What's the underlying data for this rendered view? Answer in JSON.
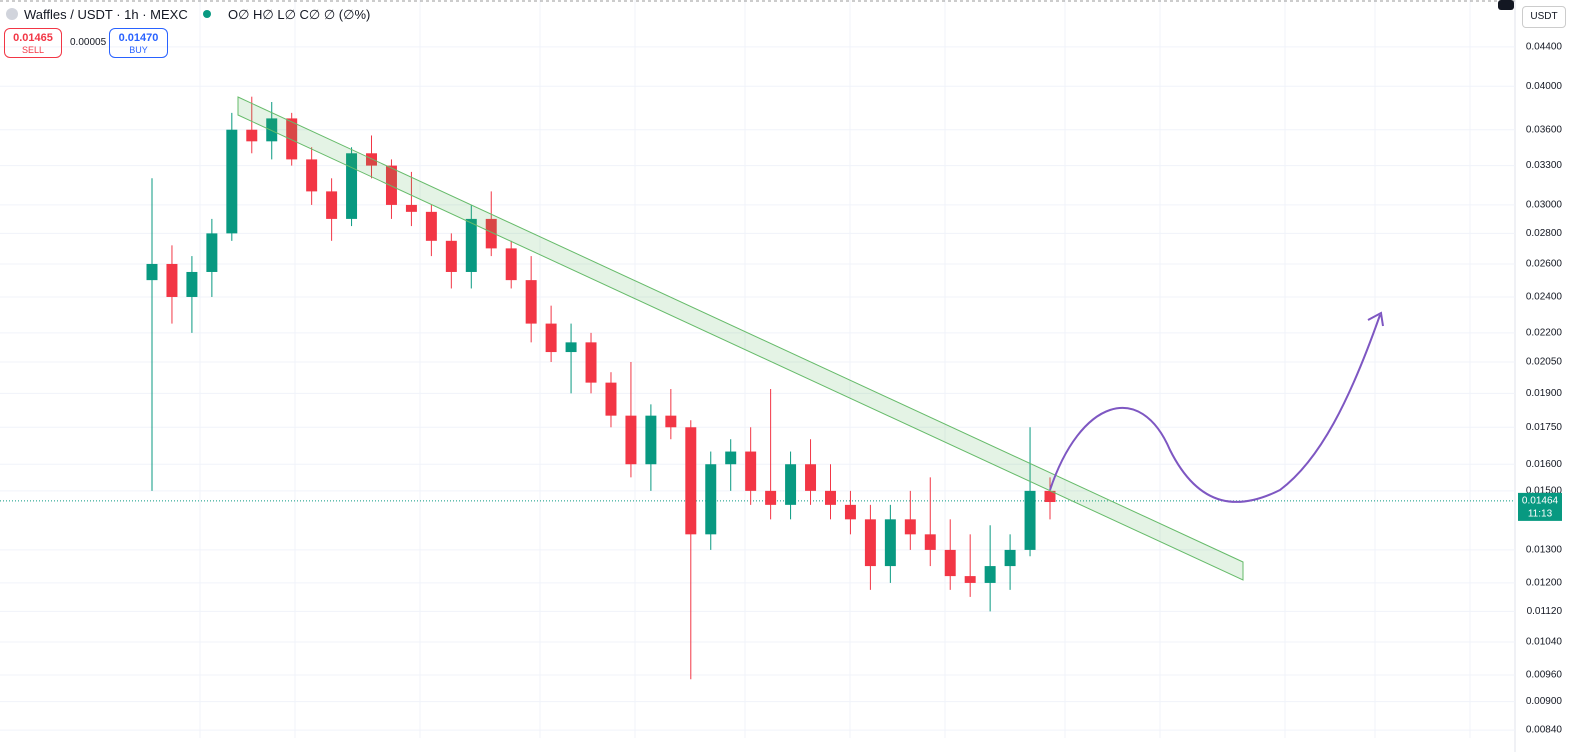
{
  "header": {
    "symbol": "Waffles / USDT · 1h · MEXC",
    "ohlc": "O∅ H∅ L∅ C∅ ∅ (∅%)",
    "sell_price": "0.01465",
    "sell_label": "SELL",
    "spread": "0.00005",
    "buy_price": "0.01470",
    "buy_label": "BUY",
    "currency": "USDT"
  },
  "chart_data": {
    "type": "candlestick",
    "log_scale": true,
    "up_color": "#089981",
    "down_color": "#f23645",
    "open": [
      0.025,
      0.026,
      0.024,
      0.0255,
      0.028,
      0.036,
      0.035,
      0.037,
      0.0335,
      0.031,
      0.029,
      0.034,
      0.033,
      0.03,
      0.0295,
      0.0275,
      0.0255,
      0.029,
      0.027,
      0.025,
      0.0225,
      0.021,
      0.0215,
      0.0195,
      0.018,
      0.016,
      0.018,
      0.0175,
      0.0135,
      0.016,
      0.0165,
      0.015,
      0.0145,
      0.016,
      0.015,
      0.0145,
      0.014,
      0.0125,
      0.014,
      0.0135,
      0.013,
      0.0122,
      0.012,
      0.0125,
      0.013,
      0.015
    ],
    "high": [
      0.032,
      0.0272,
      0.0265,
      0.029,
      0.0375,
      0.039,
      0.0385,
      0.0375,
      0.0345,
      0.032,
      0.0345,
      0.0355,
      0.0335,
      0.0325,
      0.03,
      0.028,
      0.03,
      0.031,
      0.0275,
      0.0265,
      0.0235,
      0.0225,
      0.022,
      0.02,
      0.0205,
      0.0185,
      0.0192,
      0.0178,
      0.0165,
      0.017,
      0.0175,
      0.0192,
      0.0165,
      0.017,
      0.016,
      0.015,
      0.0145,
      0.0145,
      0.015,
      0.0155,
      0.014,
      0.0135,
      0.0138,
      0.0135,
      0.0175,
      0.0155
    ],
    "low": [
      0.015,
      0.0225,
      0.022,
      0.024,
      0.0275,
      0.034,
      0.0335,
      0.033,
      0.03,
      0.0275,
      0.0285,
      0.032,
      0.029,
      0.0285,
      0.0265,
      0.0245,
      0.0245,
      0.0265,
      0.0245,
      0.0215,
      0.0205,
      0.019,
      0.019,
      0.0175,
      0.0155,
      0.015,
      0.017,
      0.0095,
      0.013,
      0.015,
      0.0145,
      0.014,
      0.014,
      0.0145,
      0.014,
      0.0135,
      0.0118,
      0.012,
      0.013,
      0.0125,
      0.0118,
      0.0116,
      0.0112,
      0.0118,
      0.0128,
      0.014
    ],
    "close": [
      0.026,
      0.024,
      0.0255,
      0.028,
      0.036,
      0.035,
      0.037,
      0.0335,
      0.031,
      0.029,
      0.034,
      0.033,
      0.03,
      0.0295,
      0.0275,
      0.0255,
      0.029,
      0.027,
      0.025,
      0.0225,
      0.021,
      0.0215,
      0.0195,
      0.018,
      0.016,
      0.018,
      0.0175,
      0.0135,
      0.016,
      0.0165,
      0.015,
      0.0145,
      0.016,
      0.015,
      0.0145,
      0.014,
      0.0125,
      0.014,
      0.0135,
      0.013,
      0.0122,
      0.012,
      0.0125,
      0.013,
      0.015,
      0.0146
    ],
    "ylim": [
      0.00824,
      0.0493
    ],
    "yticks": [
      {
        "value": 0.044,
        "label": "0.04400"
      },
      {
        "value": 0.04,
        "label": "0.04000"
      },
      {
        "value": 0.036,
        "label": "0.03600"
      },
      {
        "value": 0.033,
        "label": "0.03300"
      },
      {
        "value": 0.03,
        "label": "0.03000"
      },
      {
        "value": 0.028,
        "label": "0.02800"
      },
      {
        "value": 0.026,
        "label": "0.02600"
      },
      {
        "value": 0.024,
        "label": "0.02400"
      },
      {
        "value": 0.022,
        "label": "0.02200"
      },
      {
        "value": 0.0205,
        "label": "0.02050"
      },
      {
        "value": 0.019,
        "label": "0.01900"
      },
      {
        "value": 0.0175,
        "label": "0.01750"
      },
      {
        "value": 0.016,
        "label": "0.01600"
      },
      {
        "value": 0.015,
        "label": "0.01500"
      },
      {
        "value": 0.013,
        "label": "0.01300"
      },
      {
        "value": 0.012,
        "label": "0.01200"
      },
      {
        "value": 0.0112,
        "label": "0.01120"
      },
      {
        "value": 0.0104,
        "label": "0.01040"
      },
      {
        "value": 0.0096,
        "label": "0.00960"
      },
      {
        "value": 0.009,
        "label": "0.00900"
      },
      {
        "value": 0.0084,
        "label": "0.00840"
      }
    ],
    "grid": true,
    "last_price": 0.01464,
    "last_price_color": "#089981",
    "countdown": "11:13"
  }
}
